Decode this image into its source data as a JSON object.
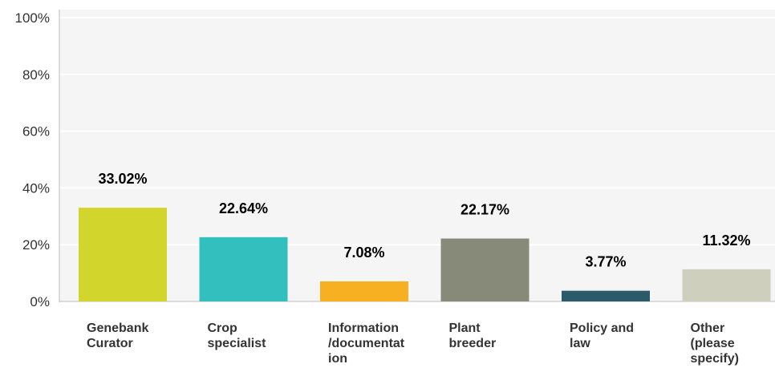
{
  "chart_data": {
    "type": "bar",
    "categories": [
      "Genebank\nCurator",
      "Crop\nspecialist",
      "Information\n/documentat\nion",
      "Plant\nbreeder",
      "Policy and\nlaw",
      "Other\n(please\nspecify)"
    ],
    "values": [
      33.02,
      22.64,
      7.08,
      22.17,
      3.77,
      11.32
    ],
    "value_labels": [
      "33.02%",
      "22.64%",
      "7.08%",
      "22.17%",
      "3.77%",
      "11.32%"
    ],
    "colors": [
      "#d2d52b",
      "#34bfbf",
      "#f7b021",
      "#878a78",
      "#2b5a6a",
      "#cfcfbe"
    ],
    "yticks": [
      "0%",
      "20%",
      "40%",
      "60%",
      "80%",
      "100%"
    ],
    "ylim": [
      0,
      100
    ],
    "grid": true,
    "plot_background": "#f5f5f5"
  }
}
